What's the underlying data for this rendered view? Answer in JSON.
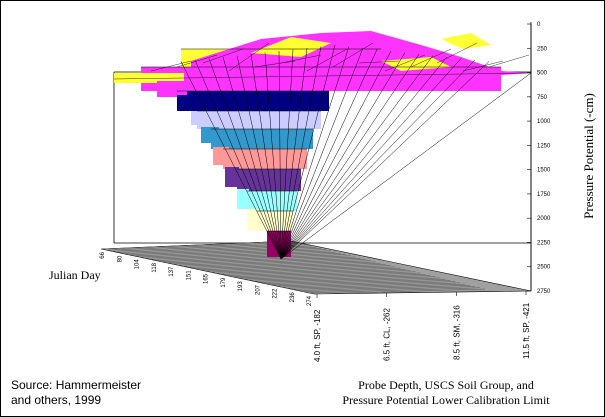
{
  "chart_data": {
    "type": "surface",
    "title": "",
    "zlabel": "Pressure Potential (-cm)",
    "xlabel": "Julian Day",
    "ylabel_line1": "Probe Depth, USCS Soil Group, and",
    "ylabel_line2": "Pressure Potential Lower Calibration Limit",
    "z_ticks": [
      "0",
      "250",
      "500",
      "750",
      "1000",
      "1250",
      "1500",
      "1750",
      "2000",
      "2250",
      "2500",
      "2750"
    ],
    "zlim": [
      0,
      2750
    ],
    "z_reversed": true,
    "julian_day_ticks": [
      "66",
      "80",
      "104",
      "118",
      "137",
      "151",
      "165",
      "179",
      "193",
      "207",
      "222",
      "236",
      "274"
    ],
    "depth_categories": [
      "4.0 ft, SP, -182",
      "6.5 ft, CL, -262",
      "8.5 ft, SM, -316",
      "11.5 ft, SP, -421"
    ],
    "band_colors": [
      "#ffff33",
      "#ff33ff",
      "#000080",
      "#ccccff",
      "#3399cc",
      "#ff9999",
      "#663399",
      "#99ffff",
      "#ffffcc",
      "#990066"
    ],
    "floor_color": "#a0a0a0"
  },
  "source": {
    "line1": "Source:  Hammermeister",
    "line2": "and others, 1999"
  }
}
